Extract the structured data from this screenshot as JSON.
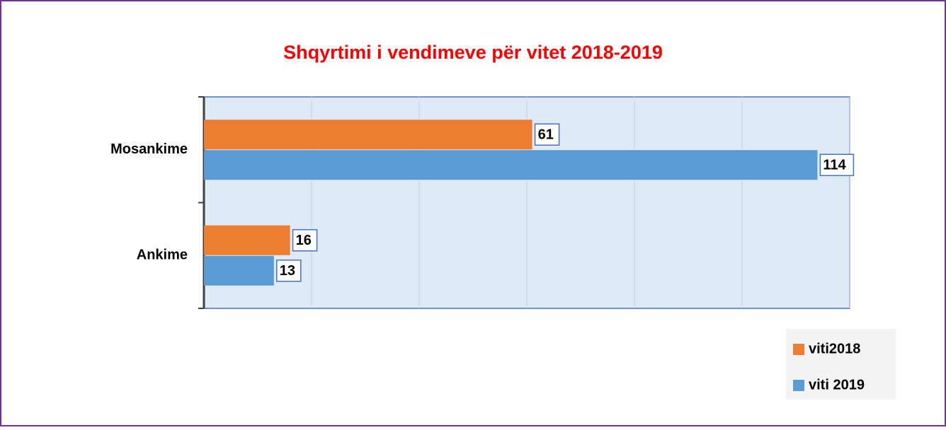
{
  "chart_data": {
    "type": "bar",
    "orientation": "horizontal",
    "title": "Shqyrtimi i vendimeve për vitet 2018-2019",
    "categories": [
      "Mosankime",
      "Ankime"
    ],
    "series": [
      {
        "name": "viti2018",
        "color": "#ED7D31",
        "values": [
          61,
          16
        ]
      },
      {
        "name": "viti 2019",
        "color": "#5B9BD5",
        "values": [
          114,
          13
        ]
      }
    ],
    "xlim": [
      0,
      120
    ],
    "xticks": [
      0,
      20,
      40,
      60,
      80,
      100,
      120
    ],
    "grid": true,
    "legend": "bottom-right"
  }
}
